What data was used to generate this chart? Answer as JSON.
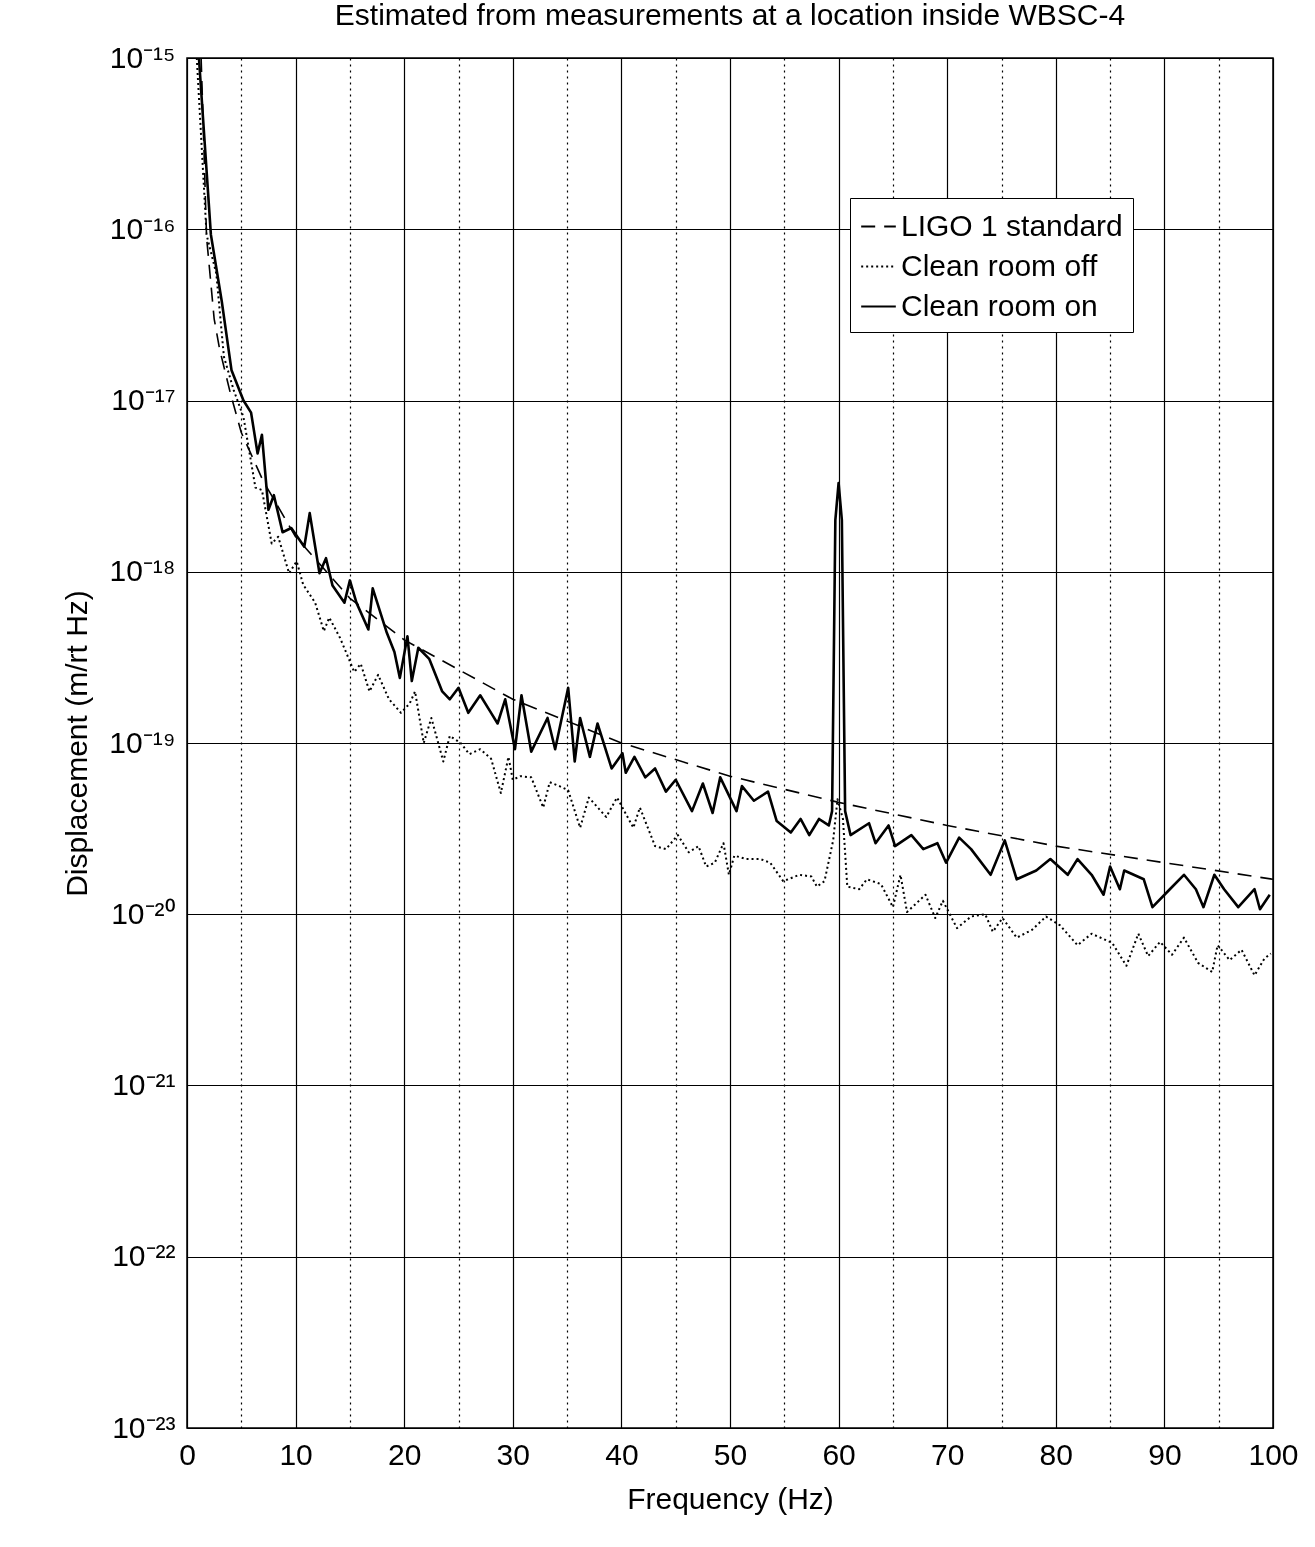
{
  "chart_data": {
    "type": "line",
    "title": "Estimated from measurements at a location inside WBSC-4",
    "xlabel": "Frequency (Hz)",
    "ylabel": "Displacement (m/rt Hz)",
    "log": "y",
    "grid": true,
    "legend": "top right",
    "xlim": [
      0,
      100
    ],
    "xticks": [
      0,
      {
        "value": 5,
        "label": null
      },
      10,
      {
        "value": 15,
        "label": null
      },
      20,
      {
        "value": 25,
        "label": null
      },
      30,
      {
        "value": 35,
        "label": null
      },
      40,
      {
        "value": 45,
        "label": null
      },
      50,
      {
        "value": 55,
        "label": null
      },
      60,
      {
        "value": 65,
        "label": null
      },
      70,
      {
        "value": 75,
        "label": null
      },
      80,
      {
        "value": 85,
        "label": null
      },
      90,
      {
        "value": 95,
        "label": null
      },
      100
    ],
    "ylim": [
      1e-23,
      1e-15
    ],
    "yticks": [
      {
        "value": 1e-23,
        "label": "10⁻²³"
      },
      {
        "value": 1e-22,
        "label": "10⁻²²"
      },
      {
        "value": 1e-21,
        "label": "10⁻²¹"
      },
      {
        "value": 1e-20,
        "label": "10⁻²⁰"
      },
      {
        "value": 1e-19,
        "label": "10⁻¹⁹"
      },
      {
        "value": 1e-18,
        "label": "10⁻¹⁸"
      },
      {
        "value": 1e-17,
        "label": "10⁻¹⁷"
      },
      {
        "value": 1e-16,
        "label": "10⁻¹⁶"
      },
      {
        "value": 1e-15,
        "label": "10⁻¹⁵"
      }
    ],
    "series": [
      {
        "name": "LIGO 1 standard",
        "color": "#000000",
        "line_style": "dashed",
        "x": [
          1.3,
          1.5,
          1.8,
          2.5,
          3,
          4,
          5,
          7,
          10,
          15,
          20,
          30,
          40,
          50,
          60,
          70,
          80,
          90,
          100
        ],
        "values": [
          1e-15,
          4e-16,
          9e-17,
          3e-17,
          2e-17,
          1.1e-17,
          6.5e-18,
          3.4e-18,
          1.6e-18,
          7e-19,
          4e-19,
          1.8e-19,
          1e-19,
          6.4e-20,
          4.5e-20,
          3.3e-20,
          2.5e-20,
          2e-20,
          1.6e-20
        ]
      },
      {
        "name": "Clean room off",
        "color": "#000000",
        "line_style": "dotted",
        "x": [
          0.9,
          1.8,
          2.7,
          3.4,
          4.3,
          5.2,
          6.3,
          6.9,
          7.8,
          8.4,
          9.4,
          10.1,
          10.7,
          11.8,
          12.6,
          13.1,
          14.1,
          15.4,
          16.0,
          16.8,
          17.6,
          18.6,
          19.7,
          20.5,
          21.0,
          21.8,
          22.5,
          23.6,
          24.2,
          25.2,
          26.0,
          27.0,
          28.0,
          28.9,
          29.6,
          30.0,
          30.7,
          31.7,
          32.8,
          33.4,
          34.3,
          35.1,
          36.2,
          37.0,
          38.6,
          39.6,
          41.1,
          41.7,
          43.1,
          44.1,
          45.2,
          46.2,
          47.1,
          47.8,
          48.6,
          49.4,
          49.9,
          50.4,
          51.5,
          52.8,
          53.7,
          54.9,
          56.4,
          57.5,
          58.0,
          58.7,
          59.5,
          59.9,
          60.4,
          60.8,
          61.9,
          62.6,
          63.9,
          65.0,
          65.7,
          66.3,
          68.0,
          68.9,
          69.6,
          70.9,
          72.2,
          73.5,
          74.2,
          75.1,
          76.4,
          77.8,
          79.1,
          80.4,
          82.0,
          83.3,
          85.2,
          86.5,
          87.6,
          88.5,
          89.6,
          90.7,
          91.8,
          93.1,
          94.4,
          94.9,
          96.0,
          97.1,
          98.3,
          99.2,
          99.8
        ],
        "values": [
          1e-15,
          9.3e-17,
          5.5e-17,
          1.8e-17,
          1.15e-17,
          8e-18,
          3.1e-18,
          3e-18,
          1.46e-18,
          1.6e-18,
          9.8e-19,
          1.15e-18,
          8.4e-19,
          6.6e-19,
          4.5e-19,
          5.4e-19,
          4.1e-19,
          2.6e-19,
          2.9e-19,
          2e-19,
          2.5e-19,
          1.8e-19,
          1.5e-19,
          1.7e-19,
          2e-19,
          1e-19,
          1.4e-19,
          7.8e-20,
          1.1e-19,
          1e-19,
          8.6e-20,
          9.2e-20,
          8.1e-20,
          5.1e-20,
          8.3e-20,
          6.1e-20,
          6.4e-20,
          6.3e-20,
          4.2e-20,
          5.9e-20,
          5.6e-20,
          5.3e-20,
          3.2e-20,
          4.8e-20,
          3.7e-20,
          4.8e-20,
          3.2e-20,
          4.2e-20,
          2.5e-20,
          2.4e-20,
          2.9e-20,
          2.3e-20,
          2.5e-20,
          1.9e-20,
          2e-20,
          2.6e-20,
          1.7e-20,
          2.2e-20,
          2.1e-20,
          2.1e-20,
          2e-20,
          1.56e-20,
          1.7e-20,
          1.66e-20,
          1.45e-20,
          1.56e-20,
          2.7e-20,
          4.7e-20,
          3.6e-20,
          1.45e-20,
          1.4e-20,
          1.6e-20,
          1.5e-20,
          1.1e-20,
          1.7e-20,
          1.03e-20,
          1.3e-20,
          9.5e-21,
          1.2e-20,
          8.3e-21,
          9.7e-21,
          1e-20,
          7.9e-21,
          9.5e-21,
          7.3e-21,
          8.1e-21,
          9.7e-21,
          8.6e-21,
          6.6e-21,
          7.7e-21,
          6.8e-21,
          5e-21,
          7.7e-21,
          5.7e-21,
          6.9e-21,
          5.8e-21,
          7.3e-21,
          5.2e-21,
          4.6e-21,
          6.6e-21,
          5.4e-21,
          6.2e-21,
          4.4e-21,
          5.5e-21,
          5.9e-21
        ]
      },
      {
        "name": "Clean room on",
        "color": "#000000",
        "line_style": "solid",
        "x": [
          1.1,
          2.2,
          3.2,
          4.1,
          5.2,
          5.9,
          6.5,
          6.9,
          7.5,
          8.0,
          8.8,
          9.6,
          10.8,
          11.3,
          12.2,
          12.8,
          13.4,
          14.5,
          15.0,
          15.6,
          16.7,
          17.1,
          18.4,
          19.1,
          19.6,
          20.3,
          20.7,
          21.3,
          22.3,
          23.5,
          24.2,
          25.0,
          25.9,
          27.0,
          28.0,
          28.6,
          29.3,
          30.2,
          30.8,
          31.7,
          33.2,
          33.9,
          35.1,
          35.7,
          36.2,
          37.1,
          37.8,
          39.1,
          40.1,
          40.4,
          41.2,
          42.2,
          43.1,
          44.1,
          45.0,
          46.5,
          47.5,
          48.4,
          49.1,
          50.6,
          51.1,
          52.2,
          53.5,
          54.3,
          55.6,
          56.5,
          57.3,
          58.2,
          59.1,
          59.4,
          59.7,
          60.0,
          60.3,
          60.6,
          61.1,
          62.8,
          63.4,
          64.6,
          65.2,
          66.7,
          67.8,
          69.1,
          69.9,
          71.1,
          72.2,
          74.0,
          75.3,
          76.4,
          78.2,
          79.5,
          81.1,
          82.0,
          83.3,
          84.4,
          85.0,
          85.9,
          86.3,
          88.1,
          88.9,
          90.5,
          91.8,
          92.9,
          93.6,
          94.6,
          95.5,
          96.8,
          98.3,
          98.8,
          99.7
        ],
        "values": [
          1e-15,
          9.3e-17,
          3.8e-17,
          1.5e-17,
          1e-17,
          8.5e-18,
          4.9e-18,
          6.3e-18,
          2.3e-18,
          2.8e-18,
          1.7e-18,
          1.8e-18,
          1.4e-18,
          2.2e-18,
          9.8e-19,
          1.2e-18,
          8.3e-19,
          6.6e-19,
          8.9e-19,
          6.6e-19,
          4.6e-19,
          8e-19,
          4.4e-19,
          3.4e-19,
          2.4e-19,
          4.2e-19,
          2.3e-19,
          3.6e-19,
          3.1e-19,
          2e-19,
          1.8e-19,
          2.1e-19,
          1.5e-19,
          1.9e-19,
          1.5e-19,
          1.3e-19,
          1.8e-19,
          9.2e-20,
          1.9e-19,
          8.9e-20,
          1.4e-19,
          9.2e-20,
          2.1e-19,
          7.8e-20,
          1.4e-19,
          8.3e-20,
          1.3e-19,
          7.1e-20,
          8.7e-20,
          6.7e-20,
          8.3e-20,
          6.3e-20,
          7.1e-20,
          5.2e-20,
          6.1e-20,
          4e-20,
          5.8e-20,
          3.9e-20,
          6.3e-20,
          4e-20,
          5.6e-20,
          4.6e-20,
          5.2e-20,
          3.5e-20,
          3e-20,
          3.6e-20,
          2.9e-20,
          3.6e-20,
          3.3e-20,
          4e-20,
          2e-18,
          3.3e-18,
          2e-18,
          4e-20,
          2.9e-20,
          3.4e-20,
          2.6e-20,
          3.3e-20,
          2.5e-20,
          2.9e-20,
          2.4e-20,
          2.6e-20,
          2e-20,
          2.8e-20,
          2.4e-20,
          1.7e-20,
          2.7e-20,
          1.6e-20,
          1.8e-20,
          2.1e-20,
          1.7e-20,
          2.1e-20,
          1.7e-20,
          1.3e-20,
          1.9e-20,
          1.4e-20,
          1.8e-20,
          1.6e-20,
          1.1e-20,
          1.4e-20,
          1.7e-20,
          1.4e-20,
          1.1e-20,
          1.7e-20,
          1.4e-20,
          1.1e-20,
          1.4e-20,
          1.07e-20,
          1.3e-20
        ]
      }
    ]
  }
}
